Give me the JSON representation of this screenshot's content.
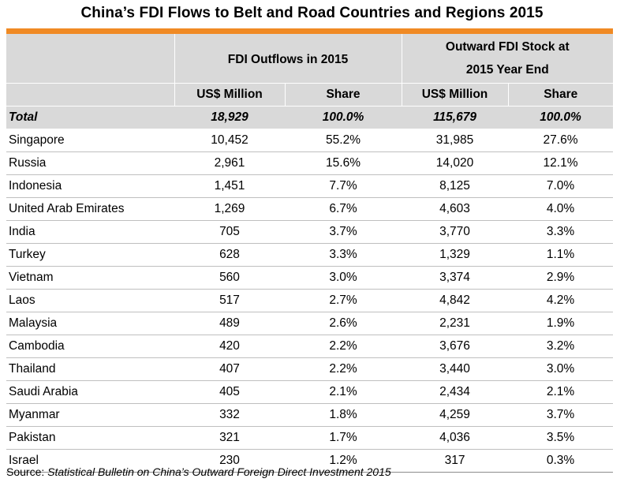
{
  "title": "China’s FDI Flows to Belt and Road Countries and Regions 2015",
  "colors": {
    "accent_bar": "#f08a24",
    "header_bg": "#d9d9d9"
  },
  "header": {
    "group1": "FDI Outflows in 2015",
    "group2_line1": "Outward FDI Stock at",
    "group2_line2": "2015 Year End",
    "sub_usd1": "US$ Million",
    "sub_share1": "Share",
    "sub_usd2": "US$ Million",
    "sub_share2": "Share"
  },
  "total": {
    "label": "Total",
    "outflow": "18,929",
    "outflow_share": "100.0%",
    "stock": "115,679",
    "stock_share": "100.0%"
  },
  "rows": [
    {
      "country": "Singapore",
      "outflow": "10,452",
      "outflow_share": "55.2%",
      "stock": "31,985",
      "stock_share": "27.6%"
    },
    {
      "country": "Russia",
      "outflow": "2,961",
      "outflow_share": "15.6%",
      "stock": "14,020",
      "stock_share": "12.1%"
    },
    {
      "country": "Indonesia",
      "outflow": "1,451",
      "outflow_share": "7.7%",
      "stock": "8,125",
      "stock_share": "7.0%"
    },
    {
      "country": "United Arab Emirates",
      "outflow": "1,269",
      "outflow_share": "6.7%",
      "stock": "4,603",
      "stock_share": "4.0%"
    },
    {
      "country": "India",
      "outflow": "705",
      "outflow_share": "3.7%",
      "stock": "3,770",
      "stock_share": "3.3%"
    },
    {
      "country": "Turkey",
      "outflow": "628",
      "outflow_share": "3.3%",
      "stock": "1,329",
      "stock_share": "1.1%"
    },
    {
      "country": "Vietnam",
      "outflow": "560",
      "outflow_share": "3.0%",
      "stock": "3,374",
      "stock_share": "2.9%"
    },
    {
      "country": "Laos",
      "outflow": "517",
      "outflow_share": "2.7%",
      "stock": "4,842",
      "stock_share": "4.2%"
    },
    {
      "country": "Malaysia",
      "outflow": "489",
      "outflow_share": "2.6%",
      "stock": "2,231",
      "stock_share": "1.9%"
    },
    {
      "country": "Cambodia",
      "outflow": "420",
      "outflow_share": "2.2%",
      "stock": "3,676",
      "stock_share": "3.2%"
    },
    {
      "country": "Thailand",
      "outflow": "407",
      "outflow_share": "2.2%",
      "stock": "3,440",
      "stock_share": "3.0%"
    },
    {
      "country": "Saudi Arabia",
      "outflow": "405",
      "outflow_share": "2.1%",
      "stock": "2,434",
      "stock_share": "2.1%"
    },
    {
      "country": "Myanmar",
      "outflow": "332",
      "outflow_share": "1.8%",
      "stock": "4,259",
      "stock_share": "3.7%"
    },
    {
      "country": "Pakistan",
      "outflow": "321",
      "outflow_share": "1.7%",
      "stock": "4,036",
      "stock_share": "3.5%"
    },
    {
      "country": "Israel",
      "outflow": "230",
      "outflow_share": "1.2%",
      "stock": "317",
      "stock_share": "0.3%"
    }
  ],
  "source": {
    "label": "Source: ",
    "title": "Statistical Bulletin on China’s Outward Foreign Direct Investment 2015"
  }
}
